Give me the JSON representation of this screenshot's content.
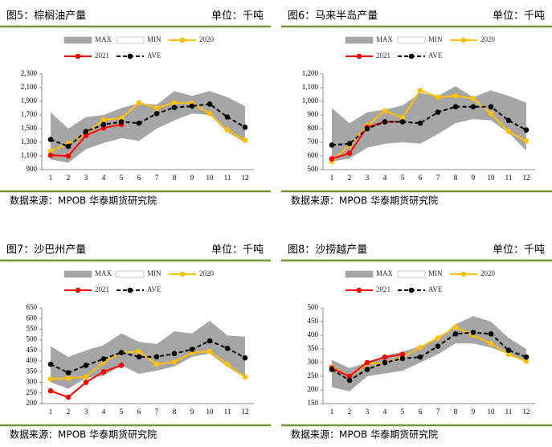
{
  "chart_data": [
    {
      "type": "line",
      "title": "图5：棕榈油产量",
      "unit": "单位：千吨",
      "source": "数据来源：MPOB 华泰期货研究院",
      "categories": [
        1,
        2,
        3,
        4,
        5,
        6,
        7,
        8,
        9,
        10,
        11,
        12
      ],
      "ylim": [
        900,
        2300
      ],
      "yticks": [
        900,
        {
          "value": 1100,
          "label": "1,100"
        },
        {
          "value": 1300,
          "label": "1,300"
        },
        {
          "value": 1500,
          "label": "1,500"
        },
        {
          "value": 1700,
          "label": "1,700"
        },
        {
          "value": 1900,
          "label": "1,900"
        },
        {
          "value": 2100,
          "label": "2,100"
        },
        {
          "value": 2300,
          "label": "2,300"
        }
      ],
      "series": [
        {
          "name": "MAX",
          "color": "#a6a6a6",
          "values": [
            1740,
            1500,
            1670,
            1700,
            1800,
            1870,
            1850,
            2050,
            1980,
            2050,
            1960,
            1830
          ]
        },
        {
          "name": "MIN",
          "color": "#ffffff",
          "values": [
            1050,
            1000,
            1200,
            1290,
            1360,
            1320,
            1500,
            1620,
            1720,
            1700,
            1450,
            1300
          ]
        },
        {
          "name": "2020",
          "color": "#ffc000",
          "values": [
            1170,
            1280,
            1420,
            1630,
            1650,
            1880,
            1800,
            1880,
            1870,
            1720,
            1480,
            1330
          ]
        },
        {
          "name": "2021",
          "color": "#ff0000",
          "values": [
            1110,
            1100,
            1400,
            1510,
            1560,
            null,
            null,
            null,
            null,
            null,
            null,
            null
          ]
        },
        {
          "name": "AVE",
          "color": "#000000",
          "values": [
            1340,
            1240,
            1460,
            1560,
            1600,
            1580,
            1720,
            1810,
            1830,
            1860,
            1670,
            1520
          ]
        }
      ]
    },
    {
      "type": "line",
      "title": "图6：马来半岛产量",
      "unit": "单位：千吨",
      "source": "数据来源：MPOB 华泰期货研究院",
      "categories": [
        1,
        2,
        3,
        4,
        5,
        6,
        7,
        8,
        9,
        10,
        11,
        12
      ],
      "ylim": [
        500,
        1200
      ],
      "yticks": [
        500,
        600,
        700,
        800,
        900,
        {
          "value": 1000,
          "label": "1,000"
        },
        {
          "value": 1100,
          "label": "1,100"
        },
        {
          "value": 1200,
          "label": "1,200"
        }
      ],
      "series": [
        {
          "name": "MAX",
          "color": "#a6a6a6",
          "values": [
            950,
            840,
            920,
            940,
            970,
            1060,
            1040,
            1110,
            1030,
            1080,
            1040,
            990
          ]
        },
        {
          "name": "MIN",
          "color": "#ffffff",
          "values": [
            560,
            580,
            660,
            690,
            700,
            690,
            760,
            840,
            870,
            860,
            770,
            640
          ]
        },
        {
          "name": "2020",
          "color": "#ffc000",
          "values": [
            560,
            680,
            820,
            930,
            880,
            1080,
            1030,
            1040,
            1020,
            910,
            780,
            710
          ]
        },
        {
          "name": "2021",
          "color": "#ff0000",
          "values": [
            580,
            620,
            810,
            850,
            850,
            null,
            null,
            null,
            null,
            null,
            null,
            null
          ]
        },
        {
          "name": "AVE",
          "color": "#000000",
          "values": [
            680,
            690,
            800,
            850,
            850,
            840,
            920,
            960,
            960,
            960,
            860,
            790
          ]
        }
      ]
    },
    {
      "type": "line",
      "title": "图7：沙巴州产量",
      "unit": "单位：千吨",
      "source": "数据来源：MPOB 华泰期货研究院",
      "categories": [
        1,
        2,
        3,
        4,
        5,
        6,
        7,
        8,
        9,
        10,
        11,
        12
      ],
      "ylim": [
        200,
        650
      ],
      "yticks": [
        200,
        250,
        300,
        350,
        400,
        450,
        500,
        550,
        600,
        650
      ],
      "series": [
        {
          "name": "MAX",
          "color": "#a6a6a6",
          "values": [
            470,
            420,
            450,
            475,
            530,
            490,
            480,
            540,
            530,
            590,
            520,
            515
          ]
        },
        {
          "name": "MIN",
          "color": "#ffffff",
          "values": [
            300,
            270,
            320,
            330,
            380,
            340,
            355,
            375,
            420,
            435,
            375,
            320
          ]
        },
        {
          "name": "2020",
          "color": "#ffc000",
          "values": [
            315,
            320,
            325,
            395,
            440,
            445,
            385,
            395,
            440,
            445,
            385,
            325
          ]
        },
        {
          "name": "2021",
          "color": "#ff0000",
          "values": [
            260,
            230,
            300,
            350,
            380,
            null,
            null,
            null,
            null,
            null,
            null,
            null
          ]
        },
        {
          "name": "AVE",
          "color": "#000000",
          "values": [
            385,
            345,
            380,
            410,
            440,
            420,
            420,
            435,
            455,
            495,
            460,
            415
          ]
        }
      ]
    },
    {
      "type": "line",
      "title": "图8：沙捞越产量",
      "unit": "单位：千吨",
      "source": "数据来源：MPOB 华泰期货研究院",
      "categories": [
        1,
        2,
        3,
        4,
        5,
        6,
        7,
        8,
        9,
        10,
        11,
        12
      ],
      "ylim": [
        150,
        500
      ],
      "yticks": [
        150,
        200,
        250,
        300,
        350,
        400,
        450,
        500
      ],
      "series": [
        {
          "name": "MAX",
          "color": "#a6a6a6",
          "values": [
            310,
            280,
            300,
            325,
            340,
            360,
            385,
            440,
            470,
            450,
            390,
            350
          ]
        },
        {
          "name": "MIN",
          "color": "#ffffff",
          "values": [
            210,
            195,
            250,
            260,
            270,
            300,
            330,
            370,
            370,
            355,
            330,
            305
          ]
        },
        {
          "name": "2020",
          "color": "#ffc000",
          "values": [
            285,
            250,
            295,
            300,
            320,
            355,
            390,
            430,
            400,
            370,
            330,
            305
          ]
        },
        {
          "name": "2021",
          "color": "#ff0000",
          "values": [
            280,
            250,
            300,
            320,
            330,
            null,
            null,
            null,
            null,
            null,
            null,
            null
          ]
        },
        {
          "name": "AVE",
          "color": "#000000",
          "values": [
            275,
            235,
            275,
            300,
            315,
            320,
            360,
            405,
            410,
            405,
            345,
            320
          ]
        }
      ]
    }
  ]
}
